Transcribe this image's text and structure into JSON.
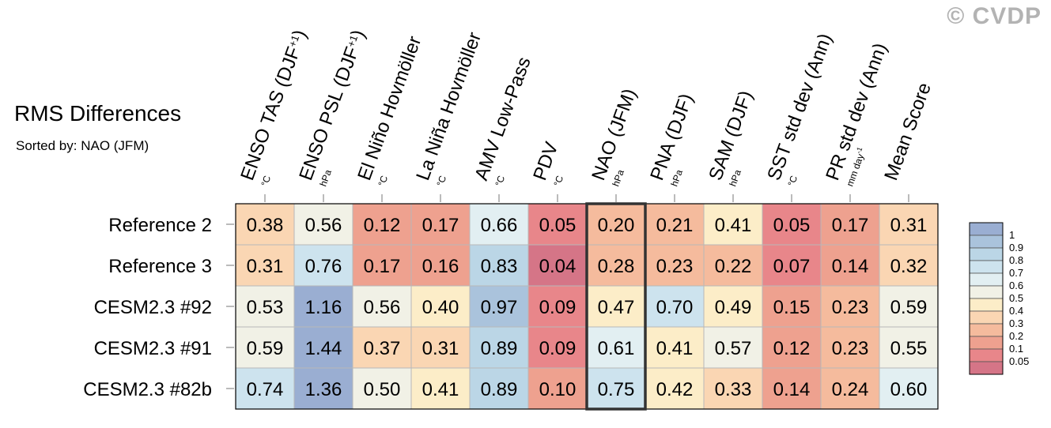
{
  "watermark": "© CVDP",
  "chart_data": {
    "type": "heatmap",
    "title": "RMS Differences",
    "subtitle": "Sorted by: NAO (JFM)",
    "columns": [
      {
        "label": "ENSO TAS (DJF+1)",
        "unit": "°C"
      },
      {
        "label": "ENSO PSL (DJF+1)",
        "unit": "hPa"
      },
      {
        "label": "El Niño Hovmöller",
        "unit": "°C"
      },
      {
        "label": "La Niña Hovmöller",
        "unit": "°C"
      },
      {
        "label": "AMV Low-Pass",
        "unit": "°C"
      },
      {
        "label": "PDV",
        "unit": "°C"
      },
      {
        "label": "NAO (JFM)",
        "unit": "hPa"
      },
      {
        "label": "PNA (DJF)",
        "unit": "hPa"
      },
      {
        "label": "SAM (DJF)",
        "unit": "hPa"
      },
      {
        "label": "SST std dev (Ann)",
        "unit": "°C"
      },
      {
        "label": "PR std dev (Ann)",
        "unit": "mm day-1"
      },
      {
        "label": "Mean Score",
        "unit": ""
      }
    ],
    "rows": [
      "Reference 2",
      "Reference 3",
      "CESM2.3 #92",
      "CESM2.3 #91",
      "CESM2.3 #82b"
    ],
    "values": [
      [
        "0.38",
        "0.56",
        "0.12",
        "0.17",
        "0.66",
        "0.05",
        "0.20",
        "0.21",
        "0.41",
        "0.05",
        "0.17",
        "0.31"
      ],
      [
        "0.31",
        "0.76",
        "0.17",
        "0.16",
        "0.83",
        "0.04",
        "0.28",
        "0.23",
        "0.22",
        "0.07",
        "0.14",
        "0.32"
      ],
      [
        "0.53",
        "1.16",
        "0.56",
        "0.40",
        "0.97",
        "0.09",
        "0.47",
        "0.70",
        "0.49",
        "0.15",
        "0.23",
        "0.59"
      ],
      [
        "0.59",
        "1.44",
        "0.37",
        "0.31",
        "0.89",
        "0.09",
        "0.61",
        "0.41",
        "0.57",
        "0.12",
        "0.23",
        "0.55"
      ],
      [
        "0.74",
        "1.36",
        "0.50",
        "0.41",
        "0.89",
        "0.10",
        "0.75",
        "0.42",
        "0.33",
        "0.14",
        "0.24",
        "0.60"
      ]
    ],
    "highlighted_column": "NAO (JFM)",
    "colorbar": {
      "labels": [
        "1",
        "0.9",
        "0.8",
        "0.7",
        "0.6",
        "0.5",
        "0.4",
        "0.3",
        "0.2",
        "0.1",
        "0.05"
      ],
      "colors": [
        "#9aaed2",
        "#aac3dc",
        "#bbd6e6",
        "#cde3ee",
        "#e2eff2",
        "#f1f1e6",
        "#fcedc8",
        "#fad6b3",
        "#f5bb9d",
        "#eea18f",
        "#e8868a",
        "#d57587"
      ]
    }
  }
}
